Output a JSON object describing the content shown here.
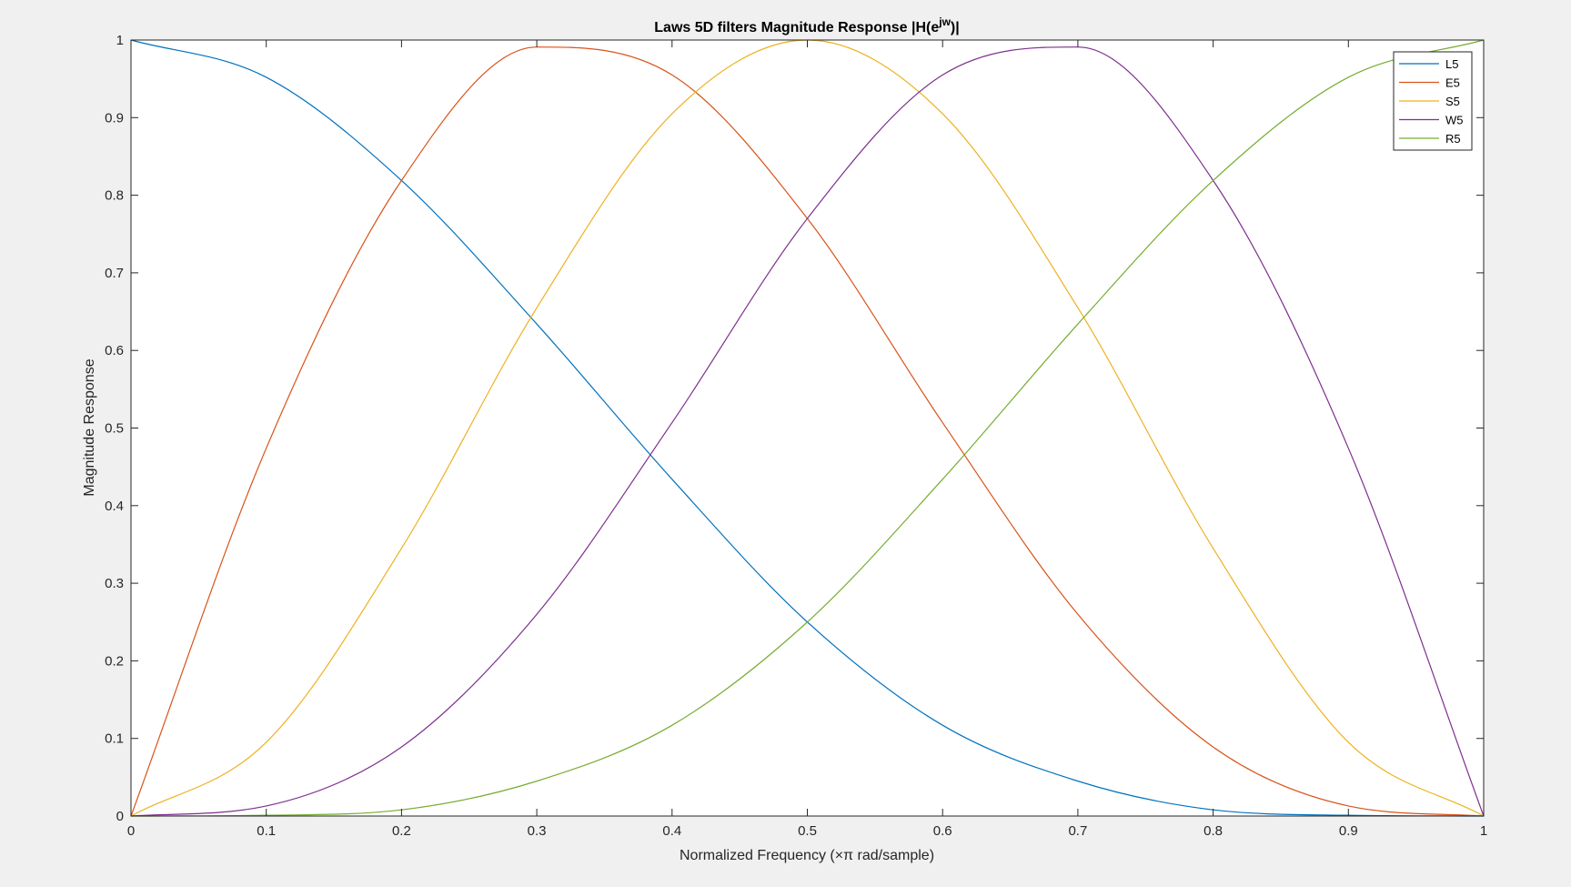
{
  "chart_data": {
    "type": "line",
    "title": {
      "prefix": "Laws 5D filters Magnitude Response |H(e",
      "superscript": "jw",
      "suffix": ")|"
    },
    "xlabel": "Normalized Frequency (×π rad/sample)",
    "ylabel": "Magnitude Response",
    "xlim": [
      0,
      1
    ],
    "ylim": [
      0,
      1
    ],
    "xticks": [
      0,
      0.1,
      0.2,
      0.3,
      0.4,
      0.5,
      0.6,
      0.7,
      0.8,
      0.9,
      1
    ],
    "xtick_labels": [
      "0",
      "0.1",
      "0.2",
      "0.3",
      "0.4",
      "0.5",
      "0.6",
      "0.7",
      "0.8",
      "0.9",
      "1"
    ],
    "yticks": [
      0,
      0.1,
      0.2,
      0.3,
      0.4,
      0.5,
      0.6,
      0.7,
      0.8,
      0.9,
      1
    ],
    "ytick_labels": [
      "0",
      "0.1",
      "0.2",
      "0.3",
      "0.4",
      "0.5",
      "0.6",
      "0.7",
      "0.8",
      "0.9",
      "1"
    ],
    "grid": false,
    "legend_position": "top-right",
    "x": [
      0,
      0.1,
      0.2,
      0.3,
      0.4,
      0.5,
      0.6,
      0.7,
      0.8,
      0.9,
      1
    ],
    "series": [
      {
        "name": "L5",
        "color": "#0072bd",
        "values": [
          1.0,
          0.952,
          0.819,
          0.634,
          0.434,
          0.25,
          0.117,
          0.045,
          0.008,
          0.001,
          0.0
        ]
      },
      {
        "name": "E5",
        "color": "#d95319",
        "values": [
          0.0,
          0.474,
          0.819,
          0.991,
          0.955,
          0.77,
          0.507,
          0.26,
          0.089,
          0.013,
          0.0
        ]
      },
      {
        "name": "S5",
        "color": "#edb120",
        "values": [
          0.0,
          0.095,
          0.345,
          0.655,
          0.905,
          1.0,
          0.905,
          0.655,
          0.345,
          0.095,
          0.0
        ]
      },
      {
        "name": "W5",
        "color": "#7e2f8e",
        "values": [
          0.0,
          0.013,
          0.089,
          0.26,
          0.507,
          0.77,
          0.955,
          0.991,
          0.819,
          0.474,
          0.0
        ]
      },
      {
        "name": "R5",
        "color": "#77ac30",
        "values": [
          0.0,
          0.001,
          0.008,
          0.045,
          0.117,
          0.25,
          0.434,
          0.634,
          0.819,
          0.952,
          1.0
        ]
      }
    ]
  }
}
